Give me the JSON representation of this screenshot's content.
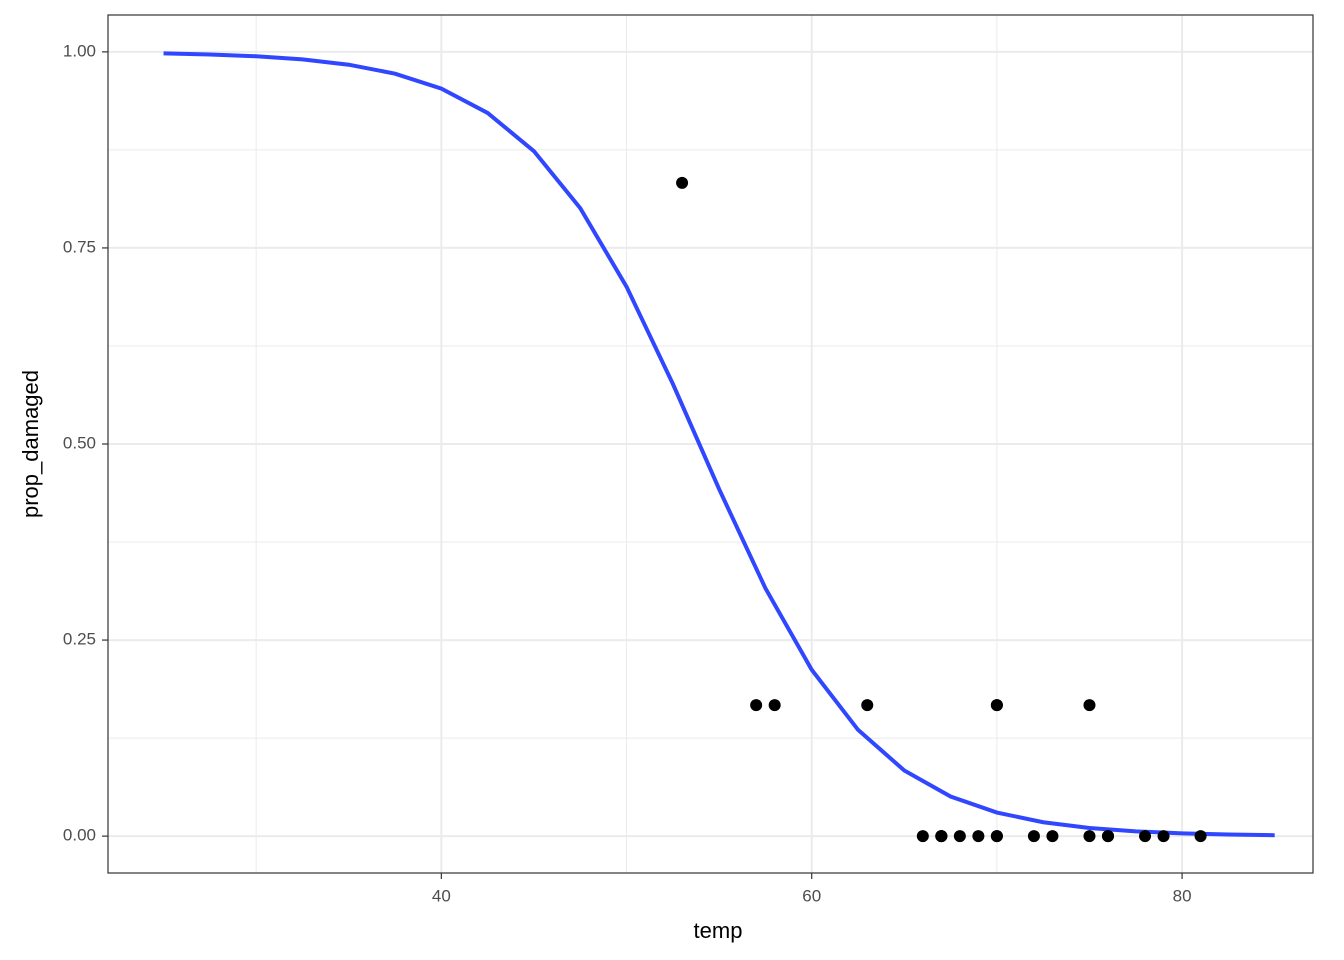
{
  "chart_data": {
    "type": "scatter",
    "x_label": "temp",
    "y_label": "prop_damaged",
    "xlim": [
      22,
      87.07
    ],
    "ylim": [
      -0.047,
      1.047
    ],
    "xticks": [
      40,
      60,
      80
    ],
    "yticks": [
      {
        "value": 0,
        "label": "0.00"
      },
      {
        "value": 0.25,
        "label": "0.25"
      },
      {
        "value": 0.5,
        "label": "0.50"
      },
      {
        "value": 0.75,
        "label": "0.75"
      },
      {
        "value": 1,
        "label": "1.00"
      }
    ],
    "minor_xticks": [
      30,
      50,
      70
    ],
    "minor_yticks": [
      0.125,
      0.375,
      0.625,
      0.875
    ],
    "grid": true,
    "series": [
      {
        "type": "scatter",
        "color": "#000000",
        "x": [
          66,
          70,
          69,
          68,
          67,
          72,
          73,
          70,
          57,
          63,
          70,
          78,
          67,
          53,
          67,
          75,
          70,
          81,
          76,
          79,
          75,
          76,
          58
        ],
        "values": [
          0,
          0.167,
          0,
          0,
          0,
          0,
          0,
          0,
          0.167,
          0.167,
          0.167,
          0,
          0,
          0.833,
          0,
          0,
          0,
          0,
          0,
          0,
          0.167,
          0,
          0.167
        ]
      },
      {
        "type": "line",
        "color": "#3047ff",
        "x": [
          25,
          27.5,
          30,
          32.5,
          35,
          37.5,
          40,
          42.5,
          45,
          47.5,
          50,
          52.5,
          55,
          57.5,
          60,
          62.5,
          65,
          67.5,
          70,
          72.5,
          75,
          77.5,
          80,
          82.5,
          85
        ],
        "values": [
          0.998,
          0.9967,
          0.9944,
          0.9904,
          0.9836,
          0.9722,
          0.9531,
          0.9221,
          0.8734,
          0.8007,
          0.7006,
          0.5768,
          0.4425,
          0.3161,
          0.2122,
          0.1356,
          0.0837,
          0.0505,
          0.0301,
          0.0177,
          0.0104,
          0.0061,
          0.0036,
          0.0021,
          0.0012
        ]
      }
    ]
  }
}
